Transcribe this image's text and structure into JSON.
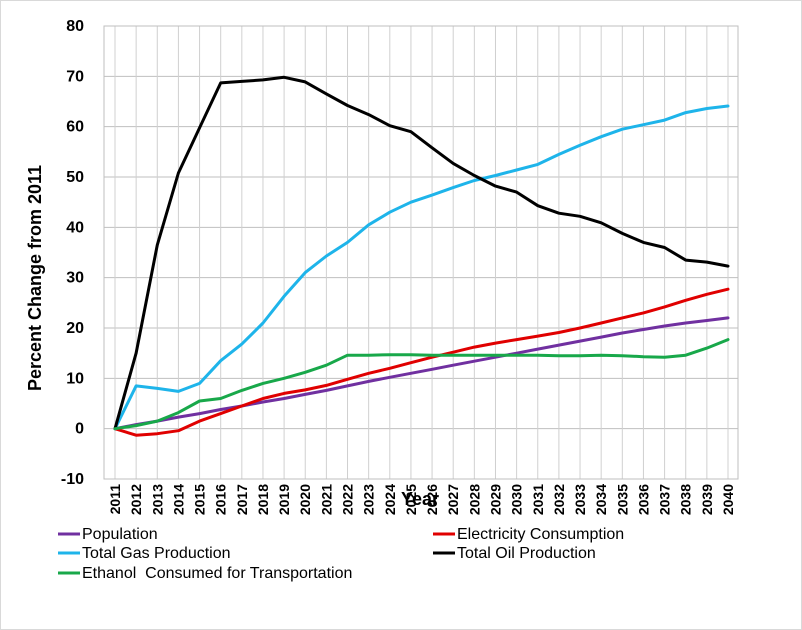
{
  "chart_data": {
    "type": "line",
    "xlabel": "Year",
    "ylabel": "Percent Change from 2011",
    "ylim": [
      -10,
      80
    ],
    "yticks": [
      -10,
      0,
      10,
      20,
      30,
      40,
      50,
      60,
      70,
      80
    ],
    "grid": true,
    "legend_position": "bottom",
    "x": [
      "2011",
      "2012",
      "2013",
      "2014",
      "2015",
      "2016",
      "2017",
      "2018",
      "2019",
      "2020",
      "2021",
      "2022",
      "2023",
      "2024",
      "2025",
      "2026",
      "2027",
      "2028",
      "2029",
      "2030",
      "2031",
      "2032",
      "2033",
      "2034",
      "2035",
      "2036",
      "2037",
      "2038",
      "2039",
      "2040"
    ],
    "series": [
      {
        "name": "Population",
        "color": "#7030a0",
        "values": [
          0,
          0.8,
          1.5,
          2.3,
          3.0,
          3.8,
          4.5,
          5.3,
          6.0,
          6.8,
          7.6,
          8.5,
          9.4,
          10.2,
          11.0,
          11.8,
          12.6,
          13.4,
          14.2,
          15.0,
          15.8,
          16.6,
          17.4,
          18.2,
          19.0,
          19.7,
          20.4,
          21.0,
          21.5,
          22.0
        ]
      },
      {
        "name": "Electricity Consumption",
        "color": "#e00000",
        "values": [
          0,
          -1.3,
          -1.0,
          -0.4,
          1.5,
          3.0,
          4.5,
          6.0,
          7.0,
          7.7,
          8.6,
          9.8,
          11.0,
          12.0,
          13.1,
          14.2,
          15.2,
          16.2,
          17.0,
          17.7,
          18.4,
          19.1,
          20.0,
          21.0,
          22.0,
          23.0,
          24.2,
          25.5,
          26.7,
          27.7
        ]
      },
      {
        "name": "Total Gas Production",
        "color": "#1eb4ea",
        "values": [
          0,
          8.5,
          8.0,
          7.4,
          9.0,
          13.5,
          16.8,
          21.0,
          26.3,
          31.0,
          34.3,
          37.0,
          40.5,
          43.0,
          45.0,
          46.4,
          47.9,
          49.3,
          50.3,
          51.4,
          52.5,
          54.5,
          56.3,
          58.0,
          59.5,
          60.4,
          61.3,
          62.8,
          63.6,
          64.1
        ]
      },
      {
        "name": "Total Oil Production",
        "color": "#000000",
        "values": [
          0,
          15.0,
          36.5,
          50.8,
          59.8,
          68.7,
          69.0,
          69.3,
          69.8,
          68.9,
          66.5,
          64.2,
          62.4,
          60.2,
          59.0,
          55.8,
          52.7,
          50.3,
          48.2,
          47.0,
          44.3,
          42.8,
          42.2,
          40.9,
          38.8,
          37.0,
          36.0,
          33.5,
          33.1,
          32.3
        ]
      },
      {
        "name": "Ethanol  Consumed for Transportation",
        "color": "#18a84a",
        "values": [
          0,
          0.6,
          1.5,
          3.2,
          5.5,
          6.0,
          7.6,
          9.0,
          10.0,
          11.2,
          12.6,
          14.6,
          14.6,
          14.7,
          14.7,
          14.6,
          14.6,
          14.6,
          14.6,
          14.6,
          14.6,
          14.5,
          14.5,
          14.6,
          14.5,
          14.3,
          14.2,
          14.6,
          16.0,
          17.7
        ]
      }
    ]
  },
  "legend": [
    {
      "label": "Population",
      "color": "#7030a0"
    },
    {
      "label": "Electricity Consumption",
      "color": "#e00000"
    },
    {
      "label": "Total Gas Production",
      "color": "#1eb4ea"
    },
    {
      "label": "Total Oil Production",
      "color": "#000000"
    },
    {
      "label": "Ethanol  Consumed for Transportation",
      "color": "#18a84a"
    }
  ]
}
